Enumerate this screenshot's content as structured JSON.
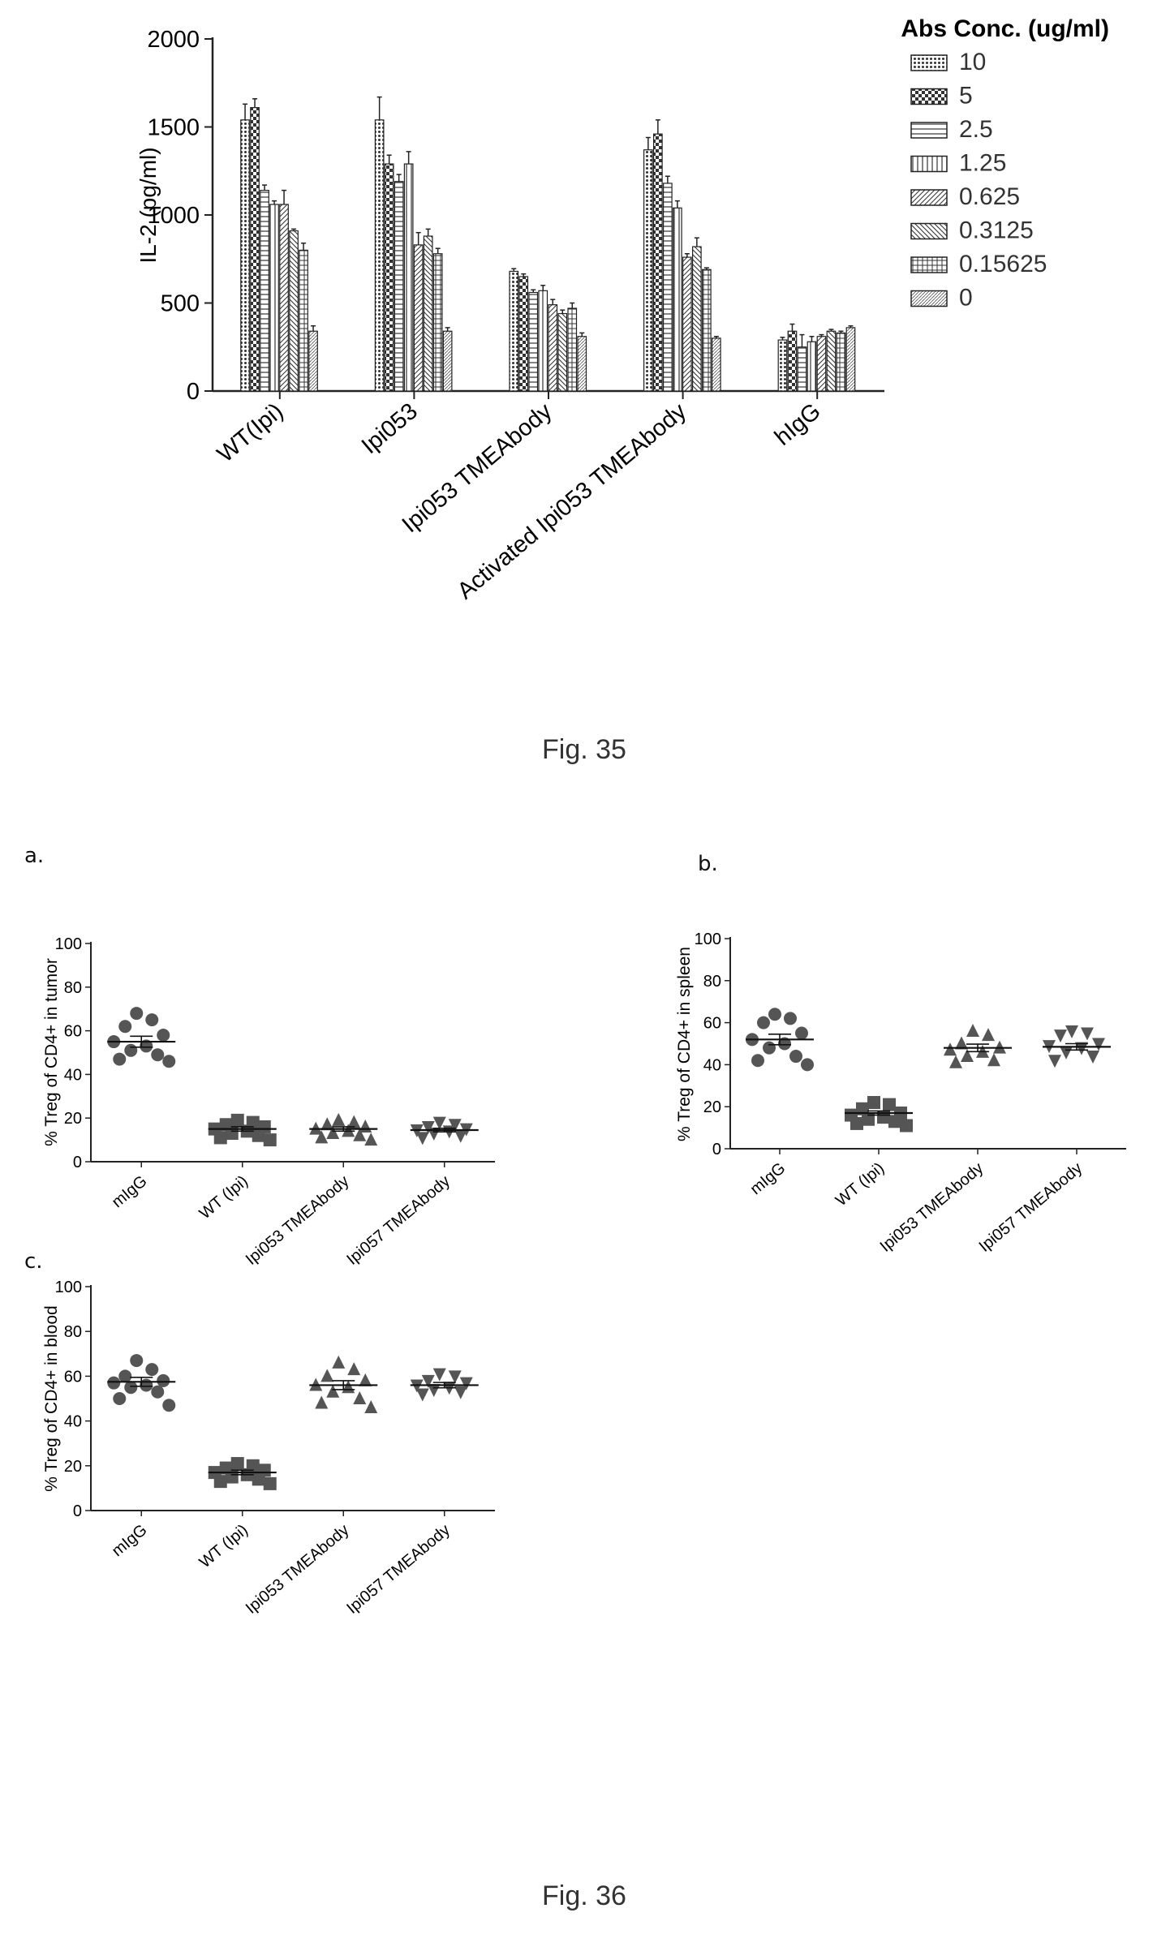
{
  "fig35": {
    "caption": "Fig. 35",
    "chart_data": {
      "type": "bar",
      "ylabel": "IL-2 (pg/ml)",
      "ylim": [
        0,
        2000
      ],
      "yticks": [
        "0",
        "500",
        "1000",
        "1500",
        "2000"
      ],
      "categories": [
        "WT(Ipi)",
        "Ipi053",
        "Ipi053 TMEAbody",
        "Activated Ipi053 TMEAbody",
        "hIgG"
      ],
      "legend_title": "Abs Conc. (ug/ml)",
      "legend_position": "right",
      "grid": false,
      "series": [
        {
          "name": "10",
          "pattern": "dots",
          "values": [
            1540,
            1540,
            680,
            1370,
            290
          ],
          "errors": [
            90,
            130,
            15,
            70,
            15
          ]
        },
        {
          "name": "5",
          "pattern": "check",
          "values": [
            1610,
            1290,
            650,
            1460,
            340
          ],
          "errors": [
            50,
            50,
            15,
            80,
            40
          ]
        },
        {
          "name": "2.5",
          "pattern": "hlines",
          "values": [
            1140,
            1190,
            560,
            1180,
            250
          ],
          "errors": [
            30,
            40,
            15,
            40,
            70
          ]
        },
        {
          "name": "1.25",
          "pattern": "vlines",
          "values": [
            1060,
            1290,
            570,
            1040,
            280
          ],
          "errors": [
            20,
            70,
            30,
            40,
            30
          ]
        },
        {
          "name": "0.625",
          "pattern": "diag",
          "values": [
            1060,
            830,
            490,
            760,
            310
          ],
          "errors": [
            80,
            70,
            30,
            20,
            10
          ]
        },
        {
          "name": "0.3125",
          "pattern": "diag2",
          "values": [
            910,
            880,
            440,
            820,
            340
          ],
          "errors": [
            10,
            40,
            20,
            50,
            10
          ]
        },
        {
          "name": "0.15625",
          "pattern": "grid",
          "values": [
            800,
            780,
            470,
            690,
            330
          ],
          "errors": [
            40,
            30,
            30,
            10,
            10
          ]
        },
        {
          "name": "0",
          "pattern": "fine",
          "values": [
            340,
            340,
            310,
            300,
            360
          ],
          "errors": [
            30,
            20,
            20,
            10,
            10
          ]
        }
      ]
    }
  },
  "fig36": {
    "caption": "Fig. 36",
    "panels": [
      {
        "label": "a.",
        "chart_data": {
          "type": "scatter",
          "ylabel": "% Treg of CD4+ in tumor",
          "ylim": [
            0,
            100
          ],
          "yticks": [
            "0",
            "20",
            "40",
            "60",
            "80",
            "100"
          ],
          "categories": [
            "mIgG",
            "WT (Ipi)",
            "Ipi053 TMEAbody",
            "Ipi057 TMEAbody"
          ],
          "markers": [
            "circle",
            "square",
            "triangle",
            "triangle-down"
          ],
          "means": [
            55,
            15,
            15,
            14.5
          ],
          "sems": [
            2.5,
            1,
            1,
            0.8
          ],
          "points": [
            [
              68,
              65,
              62,
              58,
              55,
              53,
              51,
              49,
              47,
              46
            ],
            [
              19,
              18,
              17,
              16,
              15,
              14,
              13,
              12,
              11,
              10
            ],
            [
              19,
              18,
              17,
              16,
              15,
              14,
              13,
              12,
              11,
              10
            ],
            [
              18,
              17,
              16,
              15,
              14.5,
              14,
              13,
              12,
              11
            ]
          ]
        }
      },
      {
        "label": "b.",
        "chart_data": {
          "type": "scatter",
          "ylabel": "% Treg of CD4+ in spleen",
          "ylim": [
            0,
            100
          ],
          "yticks": [
            "0",
            "20",
            "40",
            "60",
            "80",
            "100"
          ],
          "categories": [
            "mIgG",
            "WT (Ipi)",
            "Ipi053 TMEAbody",
            "Ipi057 TMEAbody"
          ],
          "markers": [
            "circle",
            "square",
            "triangle",
            "triangle-down"
          ],
          "means": [
            52,
            17,
            48,
            48.5
          ],
          "sems": [
            2.5,
            1,
            1.8,
            1.5
          ],
          "points": [
            [
              64,
              62,
              60,
              55,
              52,
              50,
              48,
              44,
              42,
              40
            ],
            [
              22,
              21,
              19,
              17,
              16,
              15,
              14,
              13,
              12,
              11
            ],
            [
              56,
              54,
              50,
              48,
              47,
              46,
              44,
              42,
              41
            ],
            [
              56,
              55,
              54,
              50,
              49,
              48,
              46,
              44,
              42
            ]
          ]
        }
      },
      {
        "label": "c.",
        "chart_data": {
          "type": "scatter",
          "ylabel": "% Treg of CD4+ in blood",
          "ylim": [
            0,
            100
          ],
          "yticks": [
            "0",
            "20",
            "40",
            "60",
            "80",
            "100"
          ],
          "categories": [
            "mIgG",
            "WT (Ipi)",
            "Ipi053 TMEAbody",
            "Ipi057 TMEAbody"
          ],
          "markers": [
            "circle",
            "square",
            "triangle",
            "triangle-down"
          ],
          "means": [
            57.5,
            17,
            56,
            56
          ],
          "sems": [
            2,
            1,
            2,
            1.2
          ],
          "points": [
            [
              67,
              63,
              60,
              58,
              57,
              56,
              55,
              53,
              50,
              47
            ],
            [
              21,
              20,
              19,
              18,
              17,
              16,
              15,
              14,
              13,
              12
            ],
            [
              66,
              63,
              60,
              58,
              56,
              55,
              53,
              50,
              48,
              46
            ],
            [
              61,
              60,
              58,
              57,
              56,
              55,
              54,
              53,
              52
            ]
          ]
        }
      }
    ]
  }
}
